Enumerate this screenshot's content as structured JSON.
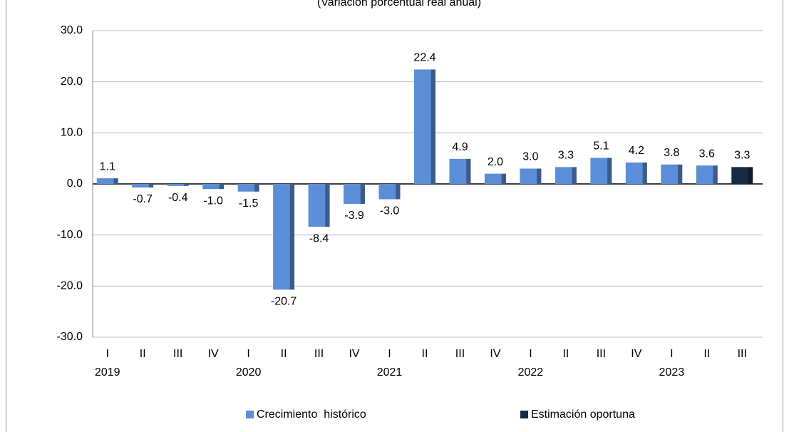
{
  "chart_data": {
    "type": "bar",
    "subtitle": "(Variación porcentual real anual)",
    "categories": [
      "I",
      "II",
      "III",
      "IV",
      "I",
      "II",
      "III",
      "IV",
      "I",
      "II",
      "III",
      "IV",
      "I",
      "II",
      "III",
      "IV",
      "I",
      "II",
      "III"
    ],
    "years": [
      "2019",
      null,
      null,
      null,
      "2020",
      null,
      null,
      null,
      "2021",
      null,
      null,
      null,
      "2022",
      null,
      null,
      null,
      "2023",
      null,
      null
    ],
    "series": [
      {
        "name": "Crecimiento  histórico",
        "color": "#5b8ed6",
        "values": [
          1.1,
          -0.7,
          -0.4,
          -1.0,
          -1.5,
          -20.7,
          -8.4,
          -3.9,
          -3.0,
          22.4,
          4.9,
          2.0,
          3.0,
          3.3,
          5.1,
          4.2,
          3.8,
          3.6,
          null
        ],
        "value_labels": [
          "1.1",
          "-0.7",
          "-0.4",
          "-1.0",
          "-1.5",
          "-20.7",
          "-8.4",
          "-3.9",
          "-3.0",
          "22.4",
          "4.9",
          "2.0",
          "3.0",
          "3.3",
          "5.1",
          "4.2",
          "3.8",
          "3.6",
          null
        ]
      },
      {
        "name": "Estimación oportuna",
        "color": "#172a48",
        "values": [
          null,
          null,
          null,
          null,
          null,
          null,
          null,
          null,
          null,
          null,
          null,
          null,
          null,
          null,
          null,
          null,
          null,
          null,
          3.3
        ],
        "value_labels": [
          null,
          null,
          null,
          null,
          null,
          null,
          null,
          null,
          null,
          null,
          null,
          null,
          null,
          null,
          null,
          null,
          null,
          null,
          "3.3"
        ]
      }
    ],
    "ylim": [
      -30,
      30
    ],
    "yticks": [
      {
        "value": -30,
        "label": "-30.0"
      },
      {
        "value": -20,
        "label": "-20.0"
      },
      {
        "value": -10,
        "label": "-10.0"
      },
      {
        "value": 0,
        "label": "0.0"
      },
      {
        "value": 10,
        "label": "10.0"
      },
      {
        "value": 20,
        "label": "20.0"
      },
      {
        "value": 30,
        "label": "30.0"
      }
    ],
    "grid": true
  }
}
